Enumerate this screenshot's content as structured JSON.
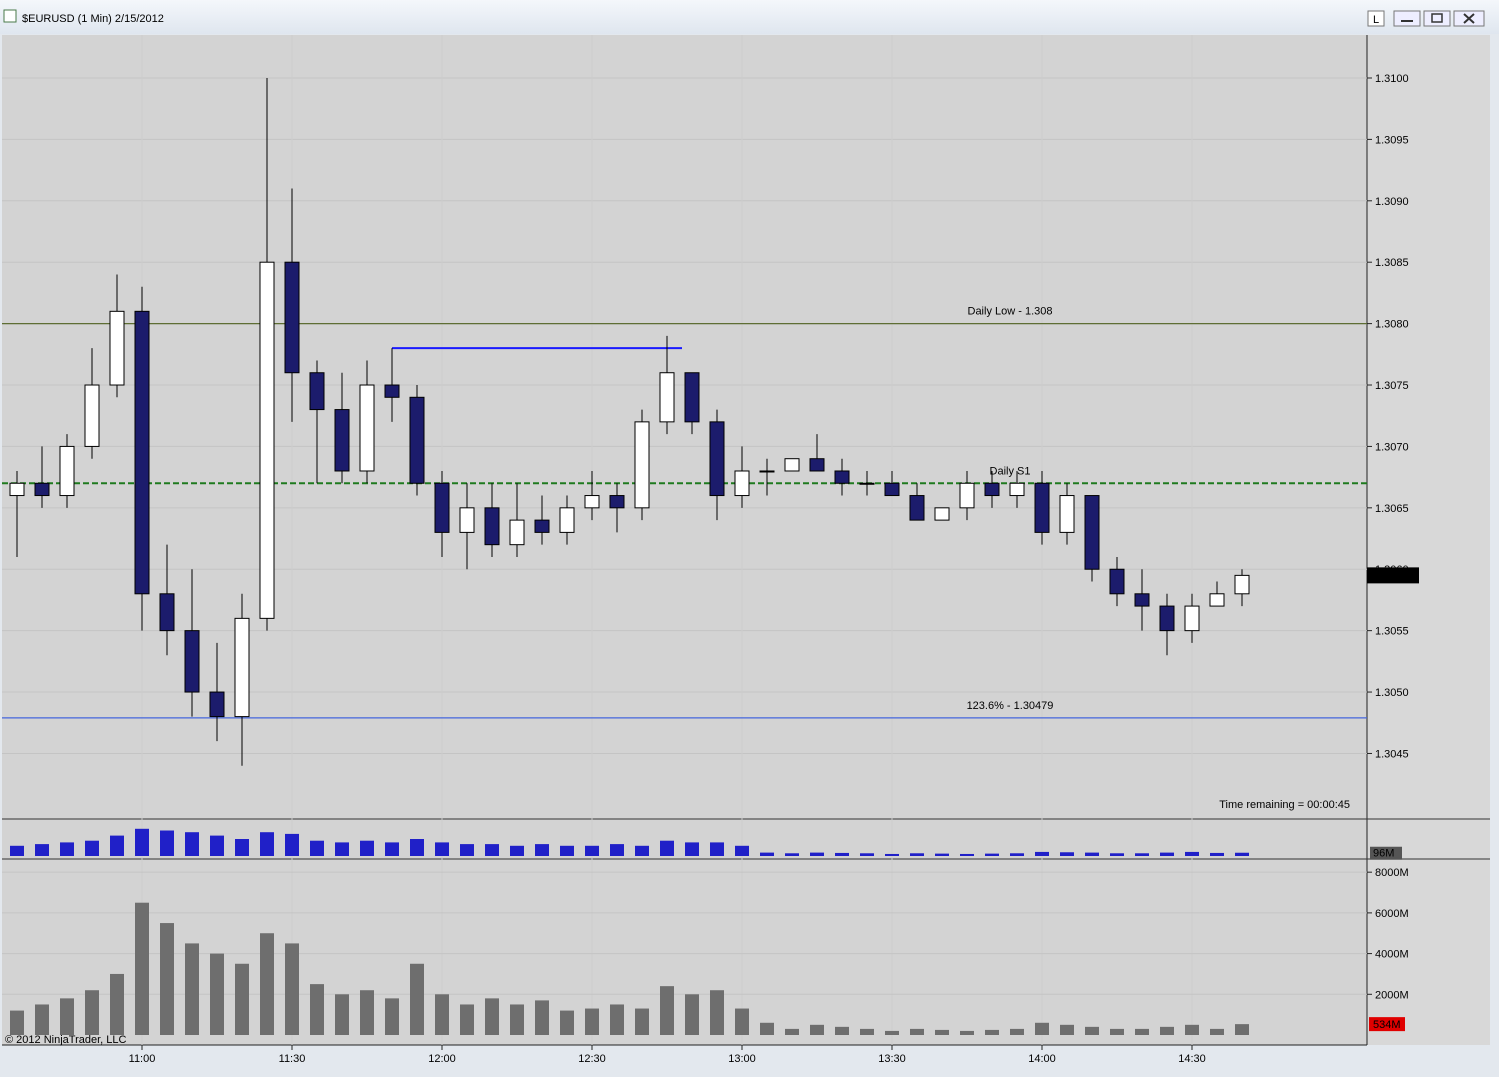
{
  "window": {
    "title": "$EURUSD (1 Min)  2/15/2012",
    "buttons": [
      "L"
    ],
    "footer": "© 2012 NinjaTrader, LLC",
    "status": "Time remaining = 00:00:45"
  },
  "chart_data": {
    "type": "candlestick",
    "x": [
      "10:35",
      "10:40",
      "10:45",
      "10:50",
      "10:55",
      "11:00",
      "11:05",
      "11:10",
      "11:15",
      "11:20",
      "11:25",
      "11:30",
      "11:35",
      "11:40",
      "11:45",
      "11:50",
      "11:55",
      "12:00",
      "12:05",
      "12:10",
      "12:15",
      "12:20",
      "12:25",
      "12:30",
      "12:35",
      "12:40",
      "12:45",
      "12:50",
      "12:55",
      "13:00",
      "13:05",
      "13:10",
      "13:15",
      "13:20",
      "13:25",
      "13:30",
      "13:35",
      "13:40",
      "13:45",
      "13:50",
      "13:55",
      "14:00",
      "14:05",
      "14:10",
      "14:15",
      "14:20",
      "14:25",
      "14:30",
      "14:35",
      "14:40"
    ],
    "open": [
      1.3066,
      1.3067,
      1.3066,
      1.307,
      1.3075,
      1.3081,
      1.3058,
      1.3055,
      1.305,
      1.3048,
      1.3056,
      1.3085,
      1.3076,
      1.3073,
      1.3068,
      1.3075,
      1.3074,
      1.3067,
      1.3063,
      1.3065,
      1.3062,
      1.3064,
      1.3063,
      1.3065,
      1.3066,
      1.3065,
      1.3072,
      1.3076,
      1.3072,
      1.3066,
      1.3068,
      1.3068,
      1.3069,
      1.3068,
      1.3067,
      1.3067,
      1.3066,
      1.3064,
      1.3065,
      1.3067,
      1.3066,
      1.3067,
      1.3063,
      1.3066,
      1.306,
      1.3058,
      1.3057,
      1.3055,
      1.3057,
      1.3058
    ],
    "high": [
      1.3068,
      1.307,
      1.3071,
      1.3078,
      1.3084,
      1.3083,
      1.3062,
      1.306,
      1.3054,
      1.3058,
      1.31,
      1.3091,
      1.3077,
      1.3076,
      1.3077,
      1.3078,
      1.3075,
      1.3068,
      1.3067,
      1.3067,
      1.3067,
      1.3066,
      1.3066,
      1.3068,
      1.3067,
      1.3073,
      1.3079,
      1.3076,
      1.3073,
      1.307,
      1.3069,
      1.3069,
      1.3071,
      1.3069,
      1.3068,
      1.3068,
      1.3067,
      1.3065,
      1.3068,
      1.3068,
      1.3068,
      1.3068,
      1.3067,
      1.3066,
      1.3061,
      1.306,
      1.3058,
      1.3058,
      1.3059,
      1.306
    ],
    "low": [
      1.3061,
      1.3065,
      1.3065,
      1.3069,
      1.3074,
      1.3055,
      1.3053,
      1.3048,
      1.3046,
      1.3044,
      1.3055,
      1.3072,
      1.3067,
      1.3067,
      1.3067,
      1.3072,
      1.3066,
      1.3061,
      1.306,
      1.3061,
      1.3061,
      1.3062,
      1.3062,
      1.3064,
      1.3063,
      1.3064,
      1.3071,
      1.3071,
      1.3064,
      1.3065,
      1.3066,
      1.3068,
      1.3068,
      1.3066,
      1.3066,
      1.3066,
      1.3064,
      1.3064,
      1.3064,
      1.3065,
      1.3065,
      1.3062,
      1.3062,
      1.3059,
      1.3057,
      1.3055,
      1.3053,
      1.3054,
      1.3057,
      1.3057
    ],
    "close": [
      1.3067,
      1.3066,
      1.307,
      1.3075,
      1.3081,
      1.3058,
      1.3055,
      1.305,
      1.3048,
      1.3056,
      1.3085,
      1.3076,
      1.3073,
      1.3068,
      1.3075,
      1.3074,
      1.3067,
      1.3063,
      1.3065,
      1.3062,
      1.3064,
      1.3063,
      1.3065,
      1.3066,
      1.3065,
      1.3072,
      1.3076,
      1.3072,
      1.3066,
      1.3068,
      1.3068,
      1.3069,
      1.3068,
      1.3067,
      1.3067,
      1.3066,
      1.3064,
      1.3065,
      1.3067,
      1.3066,
      1.3067,
      1.3063,
      1.3066,
      1.306,
      1.3058,
      1.3057,
      1.3055,
      1.3057,
      1.3058,
      1.30595
    ],
    "up_color": "#ffffff",
    "down_color": "#1c1c6c",
    "xlim": [
      "10:32",
      "15:05"
    ],
    "xticks": [
      "11:00",
      "11:30",
      "12:00",
      "12:30",
      "13:00",
      "13:30",
      "14:00",
      "14:30"
    ],
    "ylim": [
      1.30395,
      1.31035
    ],
    "yticks": [
      {
        "value": 1.3045,
        "label": "1.3045"
      },
      {
        "value": 1.305,
        "label": "1.3050"
      },
      1.3055,
      {
        "value": 1.306,
        "label": "1.3060"
      },
      1.3065,
      {
        "value": 1.307,
        "label": "1.3070"
      },
      1.3075,
      {
        "value": 1.308,
        "label": "1.3080"
      },
      1.3085,
      {
        "value": 1.309,
        "label": "1.3090"
      },
      1.3095,
      {
        "value": 1.31,
        "label": "1.3100"
      }
    ],
    "grid": true,
    "last_price": {
      "value": 1.30595,
      "label": "1.3059'5"
    },
    "levels": [
      {
        "label": "Daily Low - 1.308",
        "value": 1.308,
        "color": "#5e6e34",
        "dashed": false
      },
      {
        "label": "Daily S1",
        "value": 1.3067,
        "color": "#1e7a1e",
        "dashed": true
      },
      {
        "label": "123.6% - 1.30479",
        "value": 1.30479,
        "color": "#4466dd",
        "dashed": false
      }
    ],
    "segment": {
      "value": 1.3078,
      "x": [
        "11:50",
        "12:48"
      ],
      "color": "#1a1aff"
    },
    "tick_volume": {
      "values": [
        300,
        350,
        400,
        450,
        600,
        800,
        750,
        700,
        600,
        500,
        700,
        650,
        450,
        400,
        450,
        400,
        500,
        400,
        350,
        350,
        300,
        350,
        300,
        300,
        350,
        300,
        450,
        400,
        400,
        300,
        100,
        80,
        100,
        90,
        80,
        60,
        80,
        70,
        60,
        70,
        80,
        120,
        110,
        100,
        80,
        80,
        100,
        120,
        90,
        96
      ],
      "color": "#2020c8",
      "ylim": [
        0,
        1000
      ],
      "last": {
        "value": 96,
        "label": "96M"
      }
    },
    "volume": {
      "values": [
        1200,
        1500,
        1800,
        2200,
        3000,
        6500,
        5500,
        4500,
        4000,
        3500,
        5000,
        4500,
        2500,
        2000,
        2200,
        1800,
        3500,
        2000,
        1500,
        1800,
        1500,
        1700,
        1200,
        1300,
        1500,
        1300,
        2400,
        2000,
        2200,
        1300,
        600,
        300,
        500,
        400,
        300,
        200,
        300,
        250,
        200,
        250,
        300,
        600,
        500,
        400,
        300,
        300,
        400,
        500,
        300,
        534
      ],
      "color": "#6e6e6e",
      "ylim": [
        0,
        8500
      ],
      "yticks": [
        {
          "value": 2000,
          "label": "2000M"
        },
        {
          "value": 4000,
          "label": "4000M"
        },
        {
          "value": 6000,
          "label": "6000M"
        },
        {
          "value": 8000,
          "label": "8000M"
        }
      ],
      "last": {
        "value": 534,
        "label": "534M"
      }
    }
  }
}
